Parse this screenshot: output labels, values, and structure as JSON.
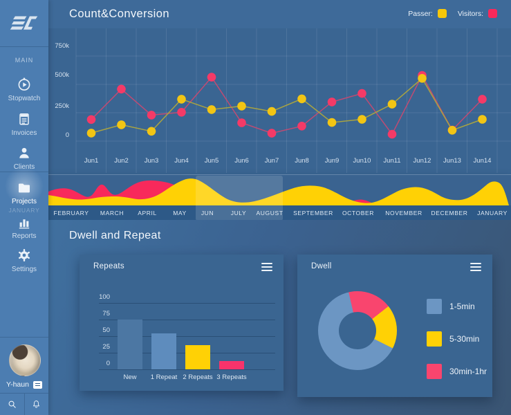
{
  "header": {
    "title": "Count&Conversion",
    "legend": [
      {
        "label": "Passer:",
        "color": "#F7C70A"
      },
      {
        "label": "Visitors:",
        "color": "#F9295B"
      }
    ]
  },
  "section": {
    "title": "Dwell and Repeat"
  },
  "sidebar": {
    "section_label": "MAIN",
    "items": [
      {
        "id": "stopwatch",
        "label": "Stopwatch",
        "icon": "stopwatch-icon",
        "active": false
      },
      {
        "id": "invoices",
        "label": "Invoices",
        "icon": "invoices-icon",
        "active": false
      },
      {
        "id": "clients",
        "label": "Clients",
        "icon": "clients-icon",
        "active": false
      },
      {
        "id": "projects",
        "label": "Projects",
        "icon": "projects-icon",
        "active": true
      },
      {
        "id": "reports",
        "label": "Reports",
        "icon": "reports-icon",
        "active": false
      },
      {
        "id": "settings",
        "label": "Settings",
        "icon": "settings-icon",
        "active": false
      }
    ],
    "user": {
      "name": "Y-haun"
    },
    "ghost_month": "JANUARY"
  },
  "chart_data": [
    {
      "id": "count-conversion",
      "type": "line",
      "title": "Count&Conversion",
      "x": [
        "Jun1",
        "Jun2",
        "Jun3",
        "Jun4",
        "Jun5",
        "Jun6",
        "Jun7",
        "Jun8",
        "Jun9",
        "Jun10",
        "Jun11",
        "Jun12",
        "Jun13",
        "Jun14"
      ],
      "y_ticks": [
        "750k",
        "500k",
        "250k",
        "0"
      ],
      "ylim": [
        0,
        900000
      ],
      "grid": true,
      "legend_position": "top-right",
      "series": [
        {
          "name": "Passer",
          "dot_color": "#F2C514",
          "line_color": "#AFA73D",
          "values": [
            15000,
            85000,
            30000,
            300000,
            213000,
            242000,
            197000,
            303000,
            104000,
            131000,
            258000,
            475000,
            39000,
            131000
          ]
        },
        {
          "name": "Visitors",
          "dot_color": "#F43A67",
          "line_color": "#CE4870",
          "values": [
            129000,
            385000,
            166000,
            190000,
            485000,
            102000,
            14000,
            74000,
            277000,
            348000,
            5000,
            500000,
            40000,
            300000
          ]
        }
      ]
    },
    {
      "id": "month-strip",
      "type": "area",
      "months": [
        "FEBRUARY",
        "MARCH",
        "APRIL",
        "MAY",
        "JUN",
        "JULY",
        "AUGUST",
        "SEPTEMBER",
        "OCTOBER",
        "NOVEMBER",
        "DECEMBER",
        "JANUARY"
      ],
      "selected_range": [
        "JUN",
        "AUGUST"
      ],
      "series_colors": {
        "passer": "#FFD105",
        "visitors": "#F8295B"
      }
    },
    {
      "id": "repeats",
      "type": "bar",
      "title": "Repeats",
      "categories": [
        "New",
        "1 Repeat",
        "2 Repeats",
        "3 Repeats"
      ],
      "values": [
        75,
        54,
        36,
        12
      ],
      "y_ticks": [
        100,
        75,
        50,
        25,
        0
      ],
      "ylim": [
        0,
        100
      ],
      "bar_colors": [
        "#4C77A3",
        "#5E8CBD",
        "#FFD105",
        "#F8336B"
      ]
    },
    {
      "id": "dwell",
      "type": "donut",
      "title": "Dwell",
      "slices": [
        {
          "label": "1-5min",
          "pct": 64,
          "color": "#6C96C3"
        },
        {
          "label": "5-30min",
          "pct": 18,
          "color": "#FFD105"
        },
        {
          "label": "30min-1hr",
          "pct": 18,
          "color": "#F9456E"
        }
      ]
    }
  ]
}
